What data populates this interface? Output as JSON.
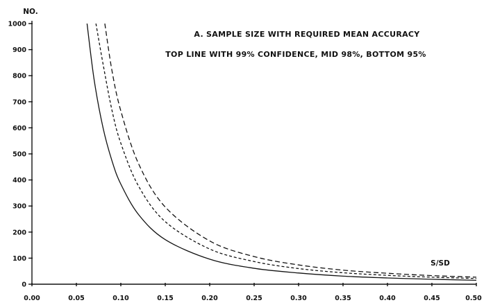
{
  "chart_data": {
    "type": "line",
    "title_lines": [
      "A. SAMPLE SIZE WITH REQUIRED MEAN ACCURACY",
      "TOP LINE WITH 99% CONFIDENCE, MID 98%, BOTTOM 95%"
    ],
    "xlabel": "S/SD",
    "ylabel": "NO.",
    "xlim": [
      0.0,
      0.5
    ],
    "ylim": [
      0,
      1000
    ],
    "x_ticks": [
      "0.00",
      "0.05",
      "0.10",
      "0.15",
      "0.20",
      "0.25",
      "0.30",
      "0.35",
      "0.40",
      "0.45",
      "0.50"
    ],
    "y_ticks": [
      "0",
      "100",
      "200",
      "300",
      "400",
      "500",
      "600",
      "700",
      "800",
      "900",
      "1000"
    ],
    "grid": false,
    "series": [
      {
        "style": "long-dash",
        "x": [
          0.082,
          0.09,
          0.1,
          0.12,
          0.15,
          0.2,
          0.25,
          0.3,
          0.35,
          0.4,
          0.45,
          0.5
        ],
        "y": [
          1000,
          820,
          665,
          462,
          296,
          166,
          106,
          74,
          54,
          42,
          33,
          27
        ]
      },
      {
        "style": "short-dash",
        "x": [
          0.072,
          0.08,
          0.09,
          0.1,
          0.12,
          0.15,
          0.2,
          0.25,
          0.3,
          0.35,
          0.4,
          0.45,
          0.5
        ],
        "y": [
          1000,
          845,
          668,
          541,
          376,
          240,
          135,
          87,
          60,
          44,
          34,
          27,
          22
        ]
      },
      {
        "style": "solid",
        "x": [
          0.062,
          0.07,
          0.08,
          0.09,
          0.1,
          0.12,
          0.15,
          0.2,
          0.25,
          0.3,
          0.35,
          0.4,
          0.45,
          0.5
        ],
        "y": [
          1000,
          784,
          600,
          474,
          384,
          267,
          171,
          96,
          61,
          43,
          31,
          24,
          19,
          15
        ]
      }
    ]
  }
}
